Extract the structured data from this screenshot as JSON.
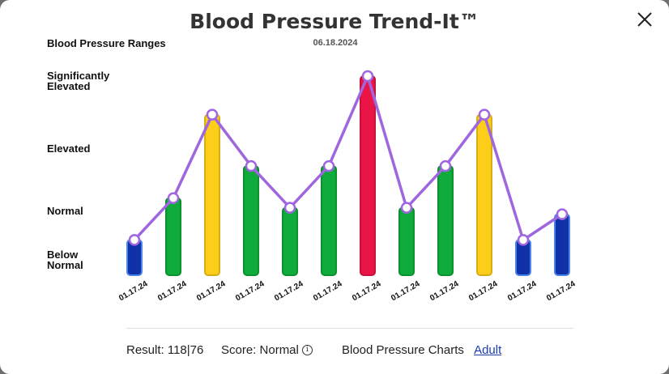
{
  "modal": {
    "title": "Blood Pressure Trend-It™",
    "close_icon": "close-icon"
  },
  "ranges_title": "Blood Pressure Ranges",
  "date": "06.18.2024",
  "range_labels": [
    {
      "line1": "Significantly",
      "line2": "Elevated"
    },
    {
      "line1": "Elevated",
      "line2": ""
    },
    {
      "line1": "Normal",
      "line2": ""
    },
    {
      "line1": "Below",
      "line2": "Normal"
    }
  ],
  "colors": {
    "below_normal": "#1131a8",
    "normal": "#0eab3a",
    "elevated": "#fcce1a",
    "significantly_elevated": "#ea1546",
    "trend_line": "#a066e0"
  },
  "chart_data": {
    "type": "bar",
    "categories": [
      "01.17.24",
      "01.17.24",
      "01.17.24",
      "01.17.24",
      "01.17.24",
      "01.17.24",
      "01.17.24",
      "01.17.24",
      "01.17.24",
      "01.17.24",
      "01.17.24",
      "01.17.24"
    ],
    "levels": [
      "Below Normal",
      "Normal",
      "Elevated",
      "Significantly Elevated"
    ],
    "values": [
      0.55,
      1.2,
      2.5,
      1.7,
      1.05,
      1.7,
      3.1,
      1.05,
      1.7,
      2.5,
      0.55,
      0.95
    ],
    "categories_level": [
      "below_normal",
      "normal",
      "elevated",
      "normal",
      "normal",
      "normal",
      "significantly_elevated",
      "normal",
      "normal",
      "elevated",
      "below_normal",
      "below_normal"
    ],
    "ylim": [
      0,
      3.1
    ],
    "trend_line": true,
    "grid": false,
    "xlabel": "",
    "ylabel": ""
  },
  "footer": {
    "result": "Result: 118|76",
    "score": "Score: Normal",
    "info_icon": "i",
    "charts_label": "Blood Pressure Charts",
    "charts_link": "Adult"
  }
}
